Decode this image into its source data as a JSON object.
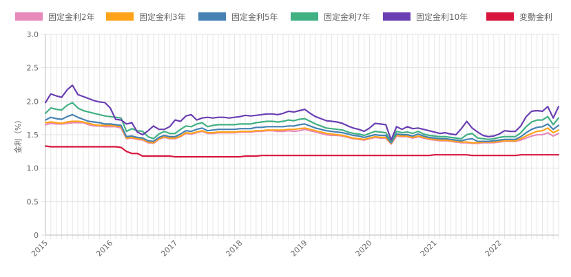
{
  "chart_data": {
    "type": "line",
    "x": [
      "2015-01",
      "2015-02",
      "2015-03",
      "2015-04",
      "2015-05",
      "2015-06",
      "2015-07",
      "2015-08",
      "2015-09",
      "2015-10",
      "2015-11",
      "2015-12",
      "2016-01",
      "2016-02",
      "2016-03",
      "2016-04",
      "2016-05",
      "2016-06",
      "2016-07",
      "2016-08",
      "2016-09",
      "2016-10",
      "2016-11",
      "2016-12",
      "2017-01",
      "2017-02",
      "2017-03",
      "2017-04",
      "2017-05",
      "2017-06",
      "2017-07",
      "2017-08",
      "2017-09",
      "2017-10",
      "2017-11",
      "2017-12",
      "2018-01",
      "2018-02",
      "2018-03",
      "2018-04",
      "2018-05",
      "2018-06",
      "2018-07",
      "2018-08",
      "2018-09",
      "2018-10",
      "2018-11",
      "2018-12",
      "2019-01",
      "2019-02",
      "2019-03",
      "2019-04",
      "2019-05",
      "2019-06",
      "2019-07",
      "2019-08",
      "2019-09",
      "2019-10",
      "2019-11",
      "2019-12",
      "2020-01",
      "2020-02",
      "2020-03",
      "2020-04",
      "2020-05",
      "2020-06",
      "2020-07",
      "2020-08",
      "2020-09",
      "2020-10",
      "2020-11",
      "2020-12",
      "2021-01",
      "2021-02",
      "2021-03",
      "2021-04",
      "2021-05",
      "2021-06",
      "2021-07",
      "2021-08",
      "2021-09",
      "2021-10",
      "2021-11",
      "2021-12",
      "2022-01",
      "2022-02",
      "2022-03",
      "2022-04",
      "2022-05",
      "2022-06",
      "2022-07",
      "2022-08",
      "2022-09",
      "2022-10",
      "2022-11",
      "2022-12"
    ],
    "xticks": [
      "2015",
      "2016",
      "2017",
      "2018",
      "2019",
      "2020",
      "2021",
      "2022"
    ],
    "ylim": [
      0,
      3.0
    ],
    "yticks": [
      "0",
      "0.5",
      "1.0",
      "1.5",
      "2.0",
      "2.5",
      "3.0"
    ],
    "ylabel": "金利（%）",
    "xlabel": "",
    "grid": true,
    "legend_position": "top",
    "series": [
      {
        "name": "固定金利2年",
        "color": "#e889bb",
        "values": [
          1.65,
          1.67,
          1.66,
          1.66,
          1.67,
          1.68,
          1.68,
          1.68,
          1.65,
          1.63,
          1.63,
          1.62,
          1.62,
          1.62,
          1.6,
          1.44,
          1.45,
          1.43,
          1.42,
          1.38,
          1.37,
          1.43,
          1.46,
          1.44,
          1.44,
          1.47,
          1.52,
          1.51,
          1.53,
          1.55,
          1.52,
          1.52,
          1.53,
          1.53,
          1.53,
          1.53,
          1.54,
          1.54,
          1.54,
          1.55,
          1.55,
          1.56,
          1.56,
          1.55,
          1.55,
          1.56,
          1.55,
          1.56,
          1.58,
          1.56,
          1.54,
          1.52,
          1.5,
          1.49,
          1.49,
          1.48,
          1.46,
          1.44,
          1.43,
          1.42,
          1.44,
          1.46,
          1.45,
          1.45,
          1.36,
          1.48,
          1.47,
          1.47,
          1.45,
          1.47,
          1.45,
          1.43,
          1.42,
          1.41,
          1.41,
          1.4,
          1.39,
          1.38,
          1.38,
          1.37,
          1.37,
          1.38,
          1.38,
          1.38,
          1.39,
          1.4,
          1.4,
          1.4,
          1.42,
          1.45,
          1.48,
          1.5,
          1.5,
          1.53,
          1.48,
          1.52
        ]
      },
      {
        "name": "固定金利3年",
        "color": "#ffa31a",
        "values": [
          1.68,
          1.69,
          1.68,
          1.67,
          1.69,
          1.7,
          1.7,
          1.69,
          1.67,
          1.65,
          1.64,
          1.64,
          1.64,
          1.63,
          1.62,
          1.45,
          1.46,
          1.44,
          1.43,
          1.39,
          1.38,
          1.44,
          1.47,
          1.45,
          1.45,
          1.48,
          1.53,
          1.52,
          1.54,
          1.56,
          1.53,
          1.53,
          1.54,
          1.54,
          1.54,
          1.54,
          1.55,
          1.55,
          1.55,
          1.56,
          1.56,
          1.57,
          1.57,
          1.57,
          1.57,
          1.58,
          1.58,
          1.59,
          1.6,
          1.58,
          1.56,
          1.54,
          1.52,
          1.51,
          1.5,
          1.49,
          1.47,
          1.45,
          1.44,
          1.43,
          1.45,
          1.47,
          1.46,
          1.46,
          1.37,
          1.49,
          1.48,
          1.48,
          1.46,
          1.48,
          1.46,
          1.44,
          1.43,
          1.42,
          1.42,
          1.41,
          1.4,
          1.39,
          1.39,
          1.38,
          1.38,
          1.39,
          1.39,
          1.39,
          1.4,
          1.41,
          1.41,
          1.41,
          1.44,
          1.48,
          1.52,
          1.55,
          1.56,
          1.6,
          1.53,
          1.57
        ]
      },
      {
        "name": "固定金利5年",
        "color": "#4682b4",
        "values": [
          1.72,
          1.76,
          1.74,
          1.73,
          1.77,
          1.8,
          1.76,
          1.73,
          1.7,
          1.69,
          1.68,
          1.66,
          1.66,
          1.65,
          1.64,
          1.47,
          1.48,
          1.46,
          1.45,
          1.41,
          1.4,
          1.46,
          1.49,
          1.47,
          1.47,
          1.51,
          1.56,
          1.55,
          1.58,
          1.6,
          1.56,
          1.57,
          1.58,
          1.58,
          1.58,
          1.58,
          1.59,
          1.59,
          1.59,
          1.61,
          1.61,
          1.62,
          1.62,
          1.62,
          1.62,
          1.63,
          1.63,
          1.65,
          1.66,
          1.63,
          1.6,
          1.58,
          1.56,
          1.55,
          1.54,
          1.53,
          1.51,
          1.49,
          1.48,
          1.46,
          1.48,
          1.5,
          1.49,
          1.49,
          1.38,
          1.51,
          1.5,
          1.5,
          1.48,
          1.51,
          1.48,
          1.46,
          1.45,
          1.44,
          1.44,
          1.43,
          1.42,
          1.41,
          1.43,
          1.44,
          1.4,
          1.4,
          1.4,
          1.41,
          1.42,
          1.43,
          1.43,
          1.43,
          1.47,
          1.53,
          1.58,
          1.61,
          1.62,
          1.66,
          1.58,
          1.64
        ]
      },
      {
        "name": "固定金利7年",
        "color": "#41b083",
        "values": [
          1.82,
          1.9,
          1.88,
          1.87,
          1.94,
          1.98,
          1.9,
          1.86,
          1.84,
          1.82,
          1.8,
          1.78,
          1.77,
          1.76,
          1.75,
          1.55,
          1.59,
          1.56,
          1.55,
          1.47,
          1.44,
          1.51,
          1.55,
          1.52,
          1.52,
          1.58,
          1.63,
          1.62,
          1.66,
          1.68,
          1.62,
          1.64,
          1.65,
          1.65,
          1.65,
          1.65,
          1.66,
          1.66,
          1.66,
          1.68,
          1.69,
          1.7,
          1.7,
          1.69,
          1.7,
          1.72,
          1.71,
          1.73,
          1.74,
          1.7,
          1.66,
          1.63,
          1.6,
          1.59,
          1.58,
          1.57,
          1.54,
          1.52,
          1.51,
          1.49,
          1.52,
          1.55,
          1.54,
          1.53,
          1.4,
          1.55,
          1.53,
          1.54,
          1.52,
          1.55,
          1.51,
          1.49,
          1.48,
          1.47,
          1.47,
          1.46,
          1.45,
          1.44,
          1.5,
          1.52,
          1.45,
          1.44,
          1.43,
          1.44,
          1.46,
          1.47,
          1.47,
          1.47,
          1.53,
          1.62,
          1.69,
          1.72,
          1.72,
          1.77,
          1.65,
          1.75
        ]
      },
      {
        "name": "固定金利10年",
        "color": "#6a3fb3",
        "values": [
          1.98,
          2.11,
          2.08,
          2.06,
          2.17,
          2.24,
          2.1,
          2.07,
          2.04,
          2.01,
          1.99,
          1.98,
          1.9,
          1.73,
          1.72,
          1.66,
          1.68,
          1.54,
          1.5,
          1.56,
          1.63,
          1.58,
          1.58,
          1.62,
          1.72,
          1.7,
          1.78,
          1.8,
          1.72,
          1.75,
          1.76,
          1.75,
          1.76,
          1.76,
          1.75,
          1.76,
          1.77,
          1.79,
          1.78,
          1.79,
          1.8,
          1.81,
          1.81,
          1.8,
          1.82,
          1.85,
          1.84,
          1.86,
          1.88,
          1.82,
          1.77,
          1.74,
          1.71,
          1.7,
          1.69,
          1.67,
          1.63,
          1.6,
          1.58,
          1.55,
          1.6,
          1.67,
          1.66,
          1.65,
          1.42,
          1.62,
          1.58,
          1.62,
          1.59,
          1.6,
          1.58,
          1.56,
          1.54,
          1.52,
          1.53,
          1.51,
          1.5,
          1.59,
          1.7,
          1.6,
          1.54,
          1.49,
          1.47,
          1.48,
          1.51,
          1.56,
          1.55,
          1.55,
          1.63,
          1.77,
          1.85,
          1.86,
          1.85,
          1.92,
          1.75,
          1.92
        ]
      },
      {
        "name": "変動金利",
        "color": "#d8163d",
        "values": [
          1.33,
          1.32,
          1.32,
          1.32,
          1.32,
          1.32,
          1.32,
          1.32,
          1.32,
          1.32,
          1.32,
          1.32,
          1.32,
          1.32,
          1.31,
          1.25,
          1.22,
          1.22,
          1.18,
          1.18,
          1.18,
          1.18,
          1.18,
          1.18,
          1.17,
          1.17,
          1.17,
          1.17,
          1.17,
          1.17,
          1.17,
          1.17,
          1.17,
          1.17,
          1.17,
          1.17,
          1.17,
          1.18,
          1.18,
          1.18,
          1.19,
          1.19,
          1.19,
          1.19,
          1.19,
          1.19,
          1.19,
          1.19,
          1.19,
          1.19,
          1.19,
          1.19,
          1.19,
          1.19,
          1.19,
          1.19,
          1.19,
          1.19,
          1.19,
          1.19,
          1.19,
          1.19,
          1.19,
          1.19,
          1.19,
          1.19,
          1.19,
          1.19,
          1.19,
          1.19,
          1.19,
          1.19,
          1.2,
          1.2,
          1.2,
          1.2,
          1.2,
          1.2,
          1.2,
          1.19,
          1.19,
          1.19,
          1.19,
          1.19,
          1.19,
          1.19,
          1.19,
          1.19,
          1.2,
          1.2,
          1.2,
          1.2,
          1.2,
          1.2,
          1.2,
          1.2
        ]
      }
    ]
  }
}
